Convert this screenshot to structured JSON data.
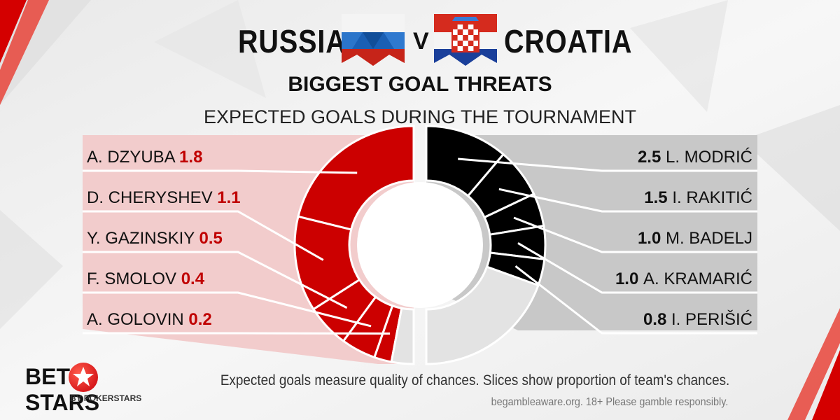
{
  "header": {
    "team_left": "RUSSIA",
    "vs": "V",
    "team_right": "CROATIA",
    "title": "BIGGEST GOAL THREATS",
    "subtitle": "EXPECTED GOALS DURING THE TOURNAMENT"
  },
  "colors": {
    "russia_slice": "#cc0000",
    "russia_panel": "#f2cccc",
    "russia_value": "#c00000",
    "croatia_slice": "#000000",
    "croatia_panel": "#c8c8c8",
    "remainder_slice": "#e3e3e3",
    "label_text": "#111111"
  },
  "chart_data": {
    "type": "donut",
    "title": "BIGGEST GOAL THREATS",
    "subtitle": "EXPECTED GOALS DURING THE TOURNAMENT",
    "series": [
      {
        "name": "RUSSIA",
        "categories": [
          "A. DZYUBA",
          "D. CHERYSHEV",
          "Y. GAZINSKIY",
          "F. SMOLOV",
          "A. GOLOVIN"
        ],
        "values": [
          1.8,
          1.1,
          0.5,
          0.4,
          0.2
        ],
        "value_labels": [
          "1.8",
          "1.1",
          "0.5",
          "0.4",
          "0.2"
        ],
        "remainder_share": 0.06
      },
      {
        "name": "CROATIA",
        "categories": [
          "L. MODRIĆ",
          "I. RAKITIĆ",
          "M. BADELJ",
          "A. KRAMARIĆ",
          "I. PERIŠIĆ"
        ],
        "values": [
          2.5,
          1.5,
          1.0,
          1.0,
          0.8
        ],
        "value_labels": [
          "2.5",
          "1.5",
          "1.0",
          "1.0",
          "0.8"
        ],
        "remainder_share": 0.39
      }
    ]
  },
  "footer": {
    "note": "Expected goals measure quality of chances. Slices show proportion of team's chances.",
    "disclaimer": "begambleaware.org.  18+ Please gamble responsibly.",
    "logo_left": "BET",
    "logo_right": "STARS",
    "logo_sub": "BY POKERSTARS"
  }
}
